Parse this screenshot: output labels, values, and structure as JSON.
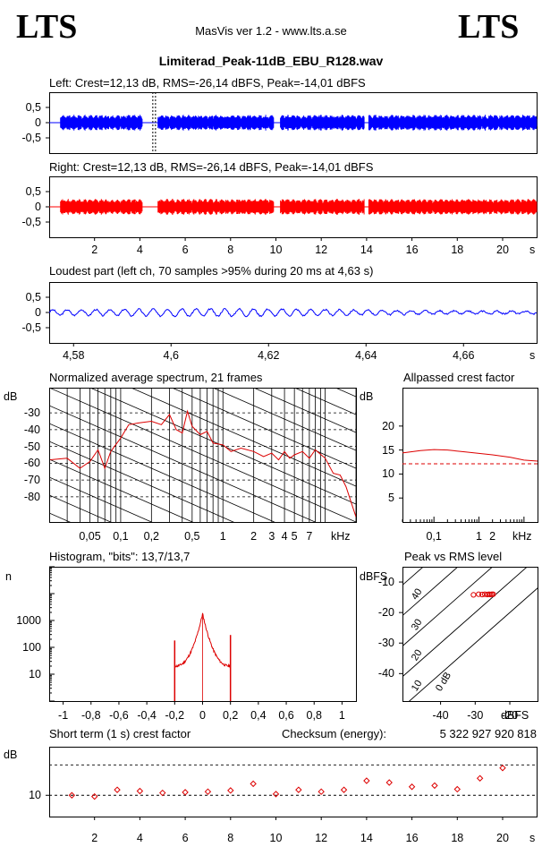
{
  "header": {
    "logo_left": "LTS",
    "logo_right": "LTS",
    "app_title": "MasVis ver 1.2 - www.lts.a.se",
    "file_name": "Limiterad_Peak-11dB_EBU_R128.wav"
  },
  "colors": {
    "left_channel": "#0000ff",
    "right_channel": "#ff0000",
    "curve": "#dd0000",
    "frame": "#000000"
  },
  "time_axis": {
    "ticks": [
      2,
      4,
      6,
      8,
      10,
      12,
      14,
      16,
      18,
      20
    ],
    "unit": "s",
    "range": [
      0,
      21.5
    ]
  },
  "chart_data": [
    {
      "id": "left",
      "type": "line",
      "title": "Left: Crest=12,13 dB, RMS=-26,14 dBFS, Peak=-14,01 dBFS",
      "ylim": [
        -1,
        1
      ],
      "y_ticks": [
        "0,5",
        "0",
        "-0,5"
      ],
      "loudest_marker_s": 4.63,
      "bursts_s": [
        [
          0.5,
          4.1
        ],
        [
          4.8,
          9.9
        ],
        [
          10.2,
          13.9
        ],
        [
          14.1,
          21.5
        ]
      ]
    },
    {
      "id": "right",
      "type": "line",
      "title": "Right: Crest=12,13 dB, RMS=-26,14 dBFS, Peak=-14,01 dBFS",
      "ylim": [
        -1,
        1
      ],
      "y_ticks": [
        "0,5",
        "0",
        "-0,5"
      ],
      "bursts_s": [
        [
          0.5,
          4.1
        ],
        [
          4.8,
          9.9
        ],
        [
          10.2,
          13.9
        ],
        [
          14.1,
          21.5
        ]
      ]
    },
    {
      "id": "loudest",
      "type": "line",
      "title": "Loudest part (left  ch, 70 samples >95% during 20 ms at 4,63 s)",
      "xlim": [
        4.575,
        4.675
      ],
      "ylim": [
        -1,
        1
      ],
      "x_ticks": [
        "4,58",
        "4,6",
        "4,62",
        "4,64",
        "4,66"
      ],
      "x_tick_values": [
        4.58,
        4.6,
        4.62,
        4.64,
        4.66
      ],
      "x_unit": "s",
      "y_ticks": [
        "0,5",
        "0",
        "-0,5"
      ],
      "cycles": 34,
      "amplitude": 0.12
    },
    {
      "id": "spectrum",
      "type": "line",
      "title": "Normalized average spectrum, 21 frames",
      "ylabel": "dB",
      "xscale": "log",
      "xlim_khz": [
        0.02,
        20
      ],
      "ylim": [
        -95,
        -15
      ],
      "y_ticks": [
        "-30",
        "-40",
        "-50",
        "-60",
        "-70",
        "-80"
      ],
      "y_tick_values": [
        -30,
        -40,
        -50,
        -60,
        -70,
        -80
      ],
      "x_ticks": [
        "0,05",
        "0,1",
        "0,2",
        "0,5",
        "1",
        "2",
        "3",
        "4",
        "5",
        "7"
      ],
      "x_tick_values": [
        0.05,
        0.1,
        0.2,
        0.5,
        1,
        2,
        3,
        4,
        5,
        7
      ],
      "x_unit": "kHz",
      "freq_khz": [
        0.02,
        0.03,
        0.04,
        0.05,
        0.06,
        0.07,
        0.08,
        0.1,
        0.12,
        0.15,
        0.2,
        0.25,
        0.3,
        0.35,
        0.4,
        0.45,
        0.5,
        0.6,
        0.7,
        0.8,
        1,
        1.2,
        1.5,
        2,
        2.5,
        3,
        3.5,
        4,
        4.5,
        5,
        6,
        7,
        8,
        10,
        12,
        14,
        16,
        20
      ],
      "level_db": [
        -58,
        -57,
        -63,
        -59,
        -52,
        -63,
        -53,
        -45,
        -37,
        -36,
        -35,
        -37,
        -31,
        -40,
        -42,
        -29,
        -38,
        -43,
        -41,
        -48,
        -49,
        -53,
        -51,
        -53,
        -56,
        -54,
        -58,
        -53,
        -57,
        -55,
        -53,
        -57,
        -52,
        -57,
        -66,
        -67,
        -74,
        -92
      ]
    },
    {
      "id": "allpass",
      "type": "line",
      "title": "Allpassed crest factor",
      "ylabel": "dB",
      "xscale": "log",
      "xlim_khz": [
        0.02,
        20
      ],
      "ylim": [
        0,
        28
      ],
      "y_ticks": [
        "20",
        "15",
        "10",
        "5"
      ],
      "y_tick_values": [
        20,
        15,
        10,
        5
      ],
      "x_ticks": [
        "0,1",
        "1",
        "2"
      ],
      "x_tick_values": [
        0.1,
        1,
        2
      ],
      "x_unit": "kHz",
      "reference_db": 12.13,
      "freq_khz": [
        0.02,
        0.05,
        0.1,
        0.2,
        0.5,
        1,
        2,
        5,
        10,
        20
      ],
      "crest_db": [
        14.4,
        14.9,
        15.1,
        15.0,
        14.6,
        14.3,
        14.0,
        13.5,
        12.9,
        12.7
      ]
    },
    {
      "id": "histogram",
      "type": "line",
      "title": "Histogram, \"bits\": 13,7/13,7",
      "ylabel": "n",
      "yscale": "log",
      "xlim": [
        -1.1,
        1.1
      ],
      "x_ticks": [
        "-1",
        "-0,8",
        "-0,6",
        "-0,4",
        "-0,2",
        "0",
        "0,2",
        "0,4",
        "0,6",
        "0,8",
        "1"
      ],
      "x_tick_values": [
        -1,
        -0.8,
        -0.6,
        -0.4,
        -0.2,
        0,
        0.2,
        0.4,
        0.6,
        0.8,
        1
      ],
      "y_ticks": [
        "1000",
        "100",
        "10"
      ],
      "y_tick_values": [
        1000,
        100,
        10
      ],
      "ylim": [
        1,
        100000
      ],
      "edge_value": 0.2,
      "peak_count": 1800,
      "edge_count": 20,
      "spike_count": 180
    },
    {
      "id": "peak_rms",
      "type": "scatter",
      "title": "Peak vs RMS level",
      "ylabel": "dBFS",
      "xlabel": "dBFS",
      "xlim": [
        -51,
        -12
      ],
      "ylim": [
        -49,
        -5
      ],
      "x_ticks": [
        "-40",
        "-30",
        "-20"
      ],
      "x_tick_values": [
        -40,
        -30,
        -20
      ],
      "y_ticks": [
        "-10",
        "-20",
        "-30",
        "-40"
      ],
      "y_tick_values": [
        -10,
        -20,
        -30,
        -40
      ],
      "diagonal_labels": [
        "40",
        "30",
        "20",
        "10",
        "0 dB"
      ],
      "diagonal_offsets_db": [
        40,
        30,
        20,
        10,
        0
      ],
      "points": [
        [
          -30.5,
          -14.2
        ],
        [
          -29,
          -14
        ],
        [
          -28,
          -14.1
        ],
        [
          -27.2,
          -14
        ],
        [
          -26.5,
          -14.1
        ],
        [
          -26,
          -14
        ],
        [
          -25.6,
          -14.1
        ],
        [
          -25.2,
          -14
        ],
        [
          -24.8,
          -14
        ]
      ]
    },
    {
      "id": "short_term",
      "type": "scatter",
      "title": "Short term (1 s) crest factor",
      "ylabel": "dB",
      "ylim": [
        6.5,
        18
      ],
      "y_ticks": [
        "10"
      ],
      "y_tick_values": [
        10
      ],
      "reference_lines_db": [
        10,
        15
      ],
      "checksum_label": "Checksum (energy):",
      "checksum_value": "5 322 927 920 818",
      "x": [
        1,
        2,
        3,
        4,
        5,
        6,
        7,
        8,
        9,
        10,
        11,
        12,
        13,
        14,
        15,
        16,
        17,
        18,
        19,
        20
      ],
      "values": [
        10.0,
        9.8,
        10.9,
        10.7,
        10.4,
        10.5,
        10.6,
        10.8,
        11.9,
        10.2,
        10.9,
        10.6,
        10.9,
        12.4,
        12.1,
        11.4,
        11.6,
        11.0,
        12.8,
        14.5
      ]
    }
  ]
}
